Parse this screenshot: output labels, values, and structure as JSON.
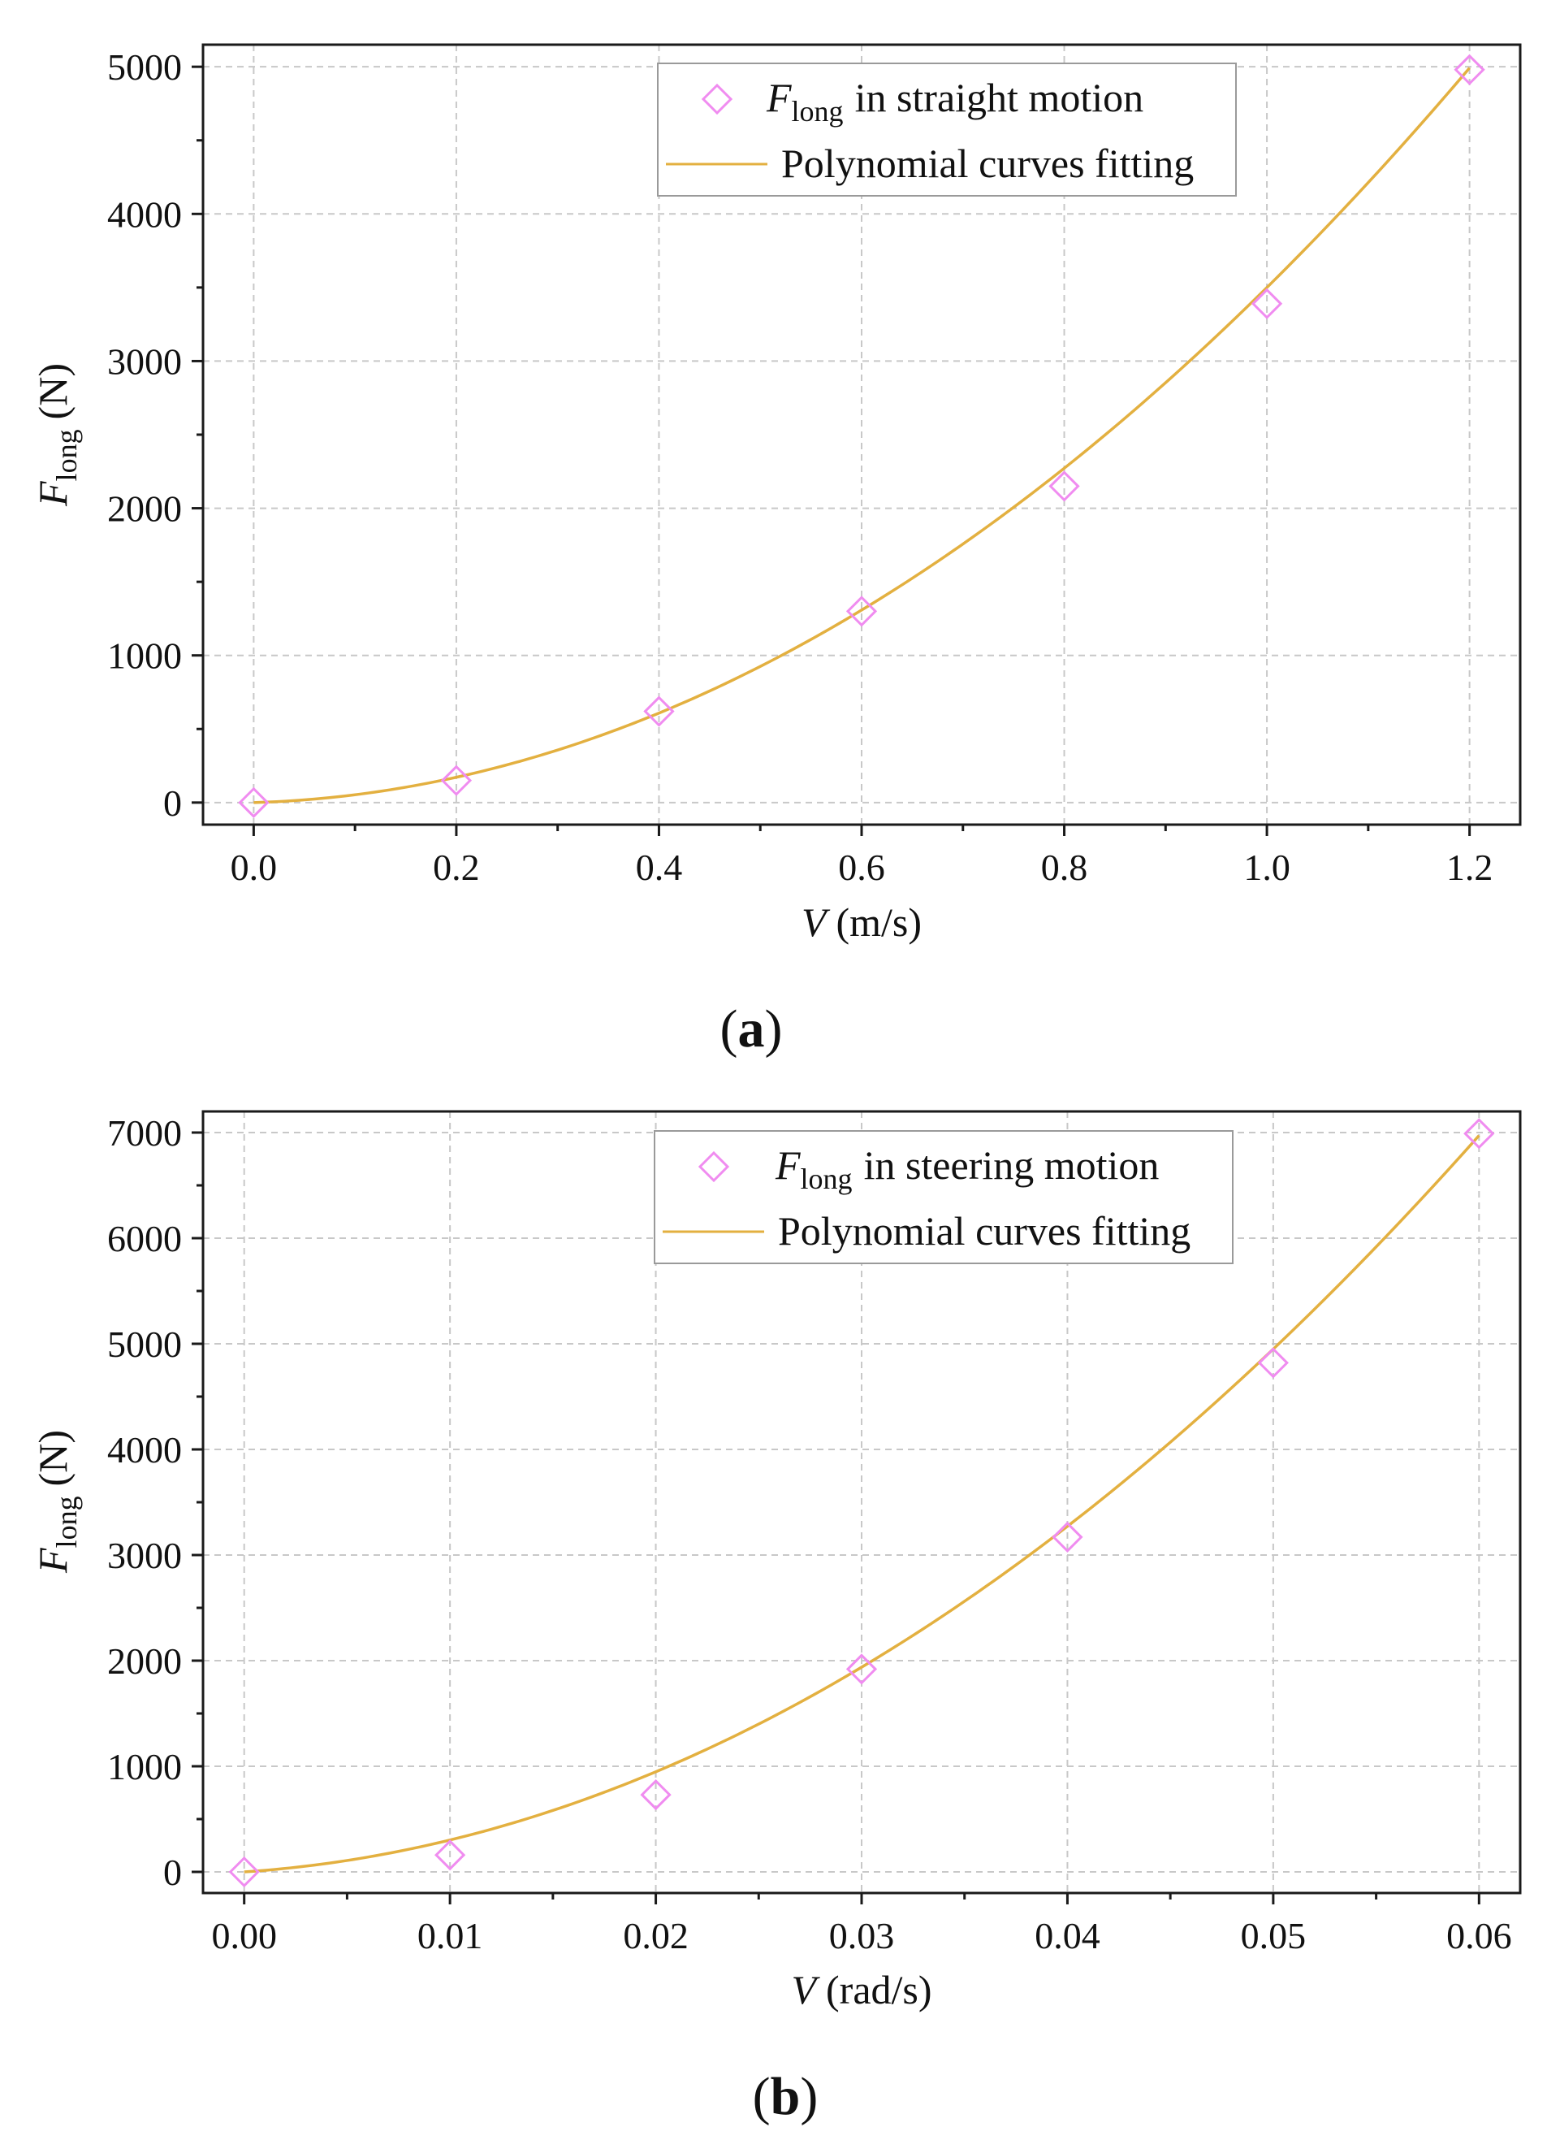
{
  "colors": {
    "marker": "#f08cf0",
    "fit_line": "#e3b040",
    "axis": "#1a1a1a",
    "grid": "#c8c8c8"
  },
  "chart_data": [
    {
      "panel_label": "(a)",
      "panel_letter": "a",
      "type": "scatter",
      "xlabel_symbol": "V",
      "xlabel_unit": "(m/s)",
      "ylabel_symbol": "F",
      "ylabel_subscript": "long",
      "ylabel_unit": "(N)",
      "xlim": [
        -0.05,
        1.25
      ],
      "ylim": [
        -150,
        5150
      ],
      "xticks": [
        0.0,
        0.2,
        0.4,
        0.6,
        0.8,
        1.0,
        1.2
      ],
      "xtick_labels": [
        "0.0",
        "0.2",
        "0.4",
        "0.6",
        "0.8",
        "1.0",
        "1.2"
      ],
      "yticks": [
        0,
        1000,
        2000,
        3000,
        4000,
        5000
      ],
      "ytick_labels": [
        "0",
        "1000",
        "2000",
        "3000",
        "4000",
        "5000"
      ],
      "grid": true,
      "legend_position": "top-right",
      "series": [
        {
          "name": "F_long in straight motion",
          "legend_symbol": "F",
          "legend_subscript": "long",
          "legend_rest": "in straight motion",
          "kind": "markers",
          "marker": "diamond",
          "x": [
            0.0,
            0.2,
            0.4,
            0.6,
            0.8,
            1.0,
            1.2
          ],
          "y": [
            0,
            150,
            620,
            1300,
            2150,
            3390,
            4980
          ]
        },
        {
          "name": "Polynomial curves fitting",
          "legend_text": "Polynomial curves fitting",
          "kind": "line",
          "coefficients": [
            0,
            200,
            3300
          ],
          "x_range": [
            0.0,
            1.2
          ]
        }
      ]
    },
    {
      "panel_label": "(b)",
      "panel_letter": "b",
      "type": "scatter",
      "xlabel_symbol": "V",
      "xlabel_unit": "(rad/s)",
      "ylabel_symbol": "F",
      "ylabel_subscript": "long",
      "ylabel_unit": "(N)",
      "xlim": [
        -0.002,
        0.062
      ],
      "ylim": [
        -200,
        7200
      ],
      "xticks": [
        0.0,
        0.01,
        0.02,
        0.03,
        0.04,
        0.05,
        0.06
      ],
      "xtick_labels": [
        "0.00",
        "0.01",
        "0.02",
        "0.03",
        "0.04",
        "0.05",
        "0.06"
      ],
      "yticks": [
        0,
        1000,
        2000,
        3000,
        4000,
        5000,
        6000,
        7000
      ],
      "ytick_labels": [
        "0",
        "1000",
        "2000",
        "3000",
        "4000",
        "5000",
        "6000",
        "7000"
      ],
      "grid": true,
      "legend_position": "top-right",
      "series": [
        {
          "name": "F_long in steering motion",
          "legend_symbol": "F",
          "legend_subscript": "long",
          "legend_rest": "in steering motion",
          "kind": "markers",
          "marker": "diamond",
          "x": [
            0.0,
            0.01,
            0.02,
            0.03,
            0.04,
            0.05,
            0.06
          ],
          "y": [
            0,
            160,
            730,
            1920,
            3170,
            4820,
            6990
          ]
        },
        {
          "name": "Polynomial curves fitting",
          "legend_text": "Polynomial curves fitting",
          "kind": "line",
          "coefficients": [
            0,
            13000,
            1720000
          ],
          "x_range": [
            0.0,
            0.06
          ]
        }
      ]
    }
  ]
}
